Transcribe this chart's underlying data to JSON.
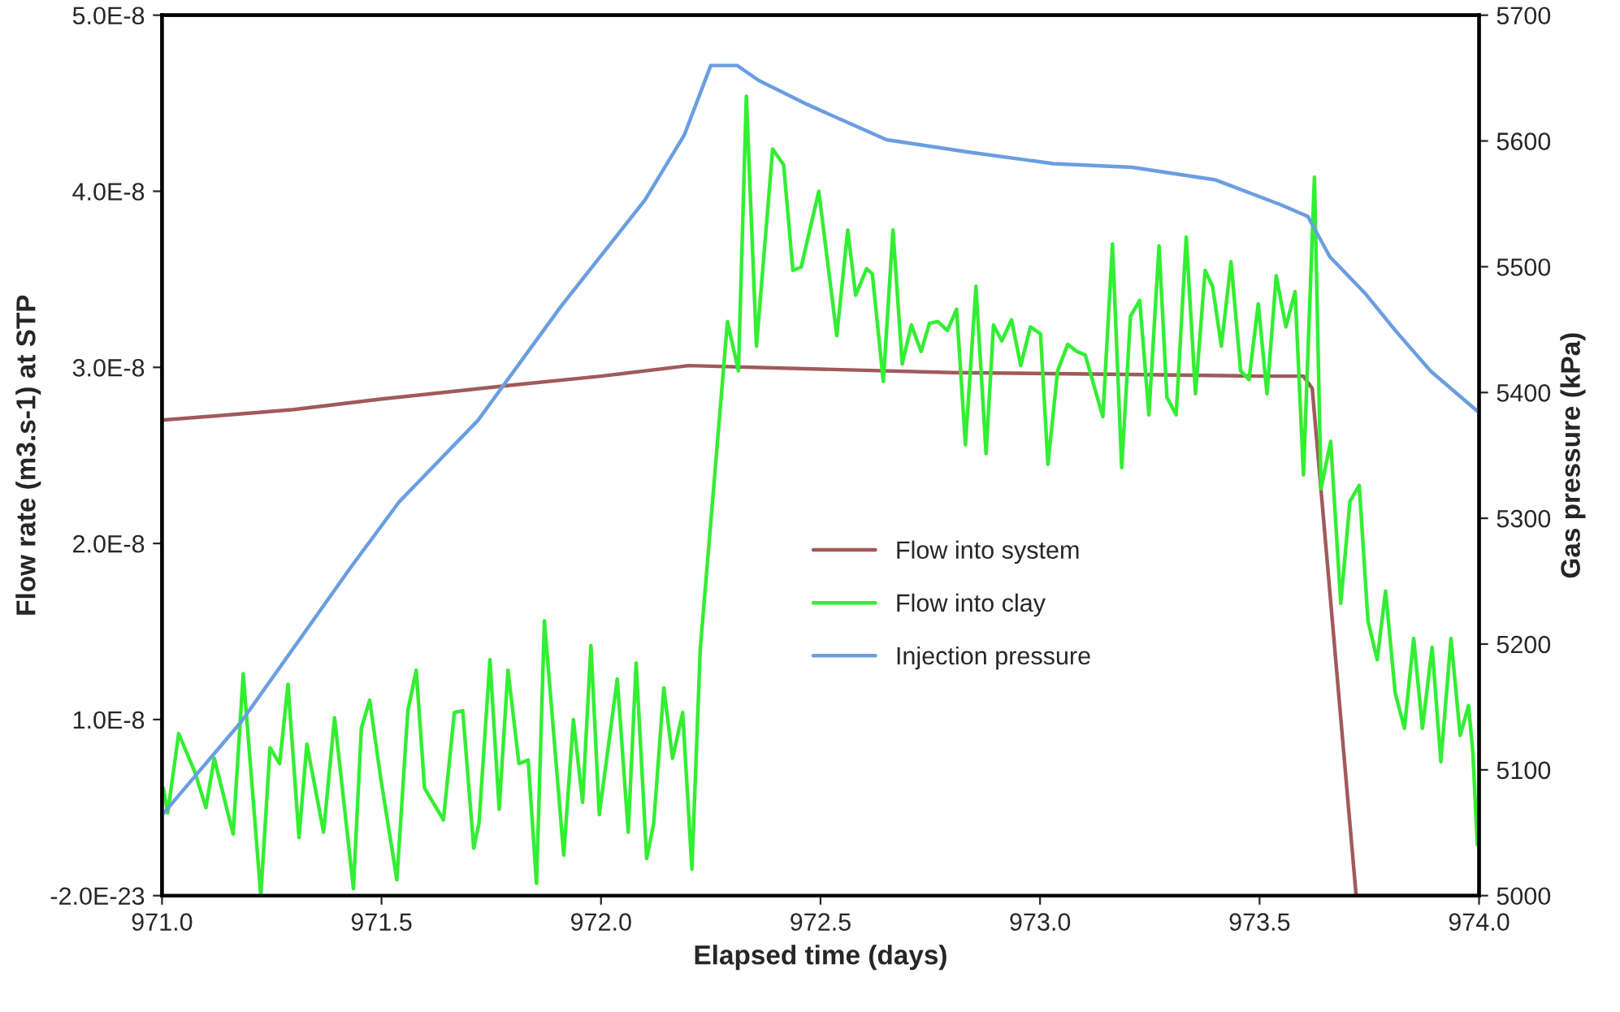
{
  "chart_data": {
    "type": "line",
    "xlabel": "Elapsed time (days)",
    "ylabel": "Flow rate (m3.s-1) at STP",
    "y2label": "Gas pressure (kPa)",
    "xlim": [
      971.0,
      974.0
    ],
    "xticks": [
      {
        "value": 971.0,
        "label": "971.0"
      },
      {
        "value": 971.5,
        "label": "971.5"
      },
      {
        "value": 972.0,
        "label": "972.0"
      },
      {
        "value": 972.5,
        "label": "972.5"
      },
      {
        "value": 973.0,
        "label": "973.0"
      },
      {
        "value": 973.5,
        "label": "973.5"
      },
      {
        "value": 974.0,
        "label": "974.0"
      }
    ],
    "ylim": [
      -2e-23,
      5e-08
    ],
    "yticks": [
      {
        "value": -2e-23,
        "label": "-2.0E-23"
      },
      {
        "value": 1e-08,
        "label": "1.0E-8"
      },
      {
        "value": 2e-08,
        "label": "2.0E-8"
      },
      {
        "value": 3e-08,
        "label": "3.0E-8"
      },
      {
        "value": 4e-08,
        "label": "4.0E-8"
      },
      {
        "value": 5e-08,
        "label": "5.0E-8"
      }
    ],
    "y2lim": [
      5000,
      5700
    ],
    "y2ticks": [
      5000,
      5100,
      5200,
      5300,
      5400,
      5500,
      5600,
      5700
    ],
    "grid": false,
    "legend": "center",
    "marker": "none",
    "line_style": "solid",
    "series": [
      {
        "name": "Flow into system",
        "color": "#a05a5a",
        "x": [
          971.0,
          971.3,
          971.5,
          971.8,
          972.0,
          972.2,
          972.5,
          972.8,
          973.2,
          973.5,
          973.6,
          973.62,
          973.72,
          974.0
        ],
        "values": [
          2.7e-08,
          2.76e-08,
          2.82e-08,
          2.9e-08,
          2.95e-08,
          3.01e-08,
          2.99e-08,
          2.97e-08,
          2.96e-08,
          2.95e-08,
          2.95e-08,
          2.88e-08,
          0,
          0
        ]
      },
      {
        "name": "Flow into clay",
        "color": "#33ee33",
        "x": [
          971.003,
          971.013,
          971.038,
          971.075,
          971.1,
          971.119,
          971.162,
          971.185,
          971.225,
          971.246,
          971.268,
          971.287,
          971.312,
          971.33,
          971.368,
          971.393,
          971.436,
          971.454,
          971.473,
          971.498,
          971.535,
          971.56,
          971.579,
          971.598,
          971.641,
          971.666,
          971.685,
          971.71,
          971.722,
          971.747,
          971.768,
          971.788,
          971.813,
          971.834,
          971.853,
          971.871,
          971.915,
          971.937,
          971.958,
          971.977,
          971.996,
          972.037,
          972.062,
          972.08,
          972.104,
          972.12,
          972.143,
          972.163,
          972.186,
          972.207,
          972.226,
          972.288,
          972.313,
          972.331,
          972.354,
          972.391,
          972.416,
          972.437,
          972.456,
          972.496,
          972.537,
          972.562,
          972.58,
          972.605,
          972.618,
          972.643,
          972.665,
          972.686,
          972.707,
          972.729,
          972.748,
          972.767,
          972.789,
          972.81,
          972.83,
          972.854,
          972.877,
          972.894,
          972.913,
          972.935,
          972.956,
          972.978,
          973.001,
          973.018,
          973.04,
          973.063,
          973.084,
          973.103,
          973.143,
          973.165,
          973.186,
          973.206,
          973.227,
          973.248,
          973.271,
          973.289,
          973.31,
          973.333,
          973.354,
          973.376,
          973.393,
          973.413,
          973.435,
          973.457,
          973.476,
          973.497,
          973.517,
          973.538,
          973.56,
          973.581,
          973.6,
          973.625,
          973.64,
          973.662,
          973.685,
          973.706,
          973.727,
          973.747,
          973.768,
          973.787,
          973.809,
          973.83,
          973.851,
          973.871,
          973.893,
          973.913,
          973.936,
          973.957,
          973.976,
          973.986,
          973.996
        ],
        "values": [
          6.1e-09,
          4.7e-09,
          9.2e-09,
          7e-09,
          5e-09,
          7.8e-09,
          3.5e-09,
          1.26e-08,
          0,
          8.4e-09,
          7.5e-09,
          1.2e-08,
          3.3e-09,
          8.6e-09,
          3.6e-09,
          1.01e-08,
          4e-10,
          9.5e-09,
          1.11e-08,
          6.7e-09,
          9e-10,
          1.05e-08,
          1.28e-08,
          6.1e-09,
          4.3e-09,
          1.04e-08,
          1.05e-08,
          2.7e-09,
          4.1e-09,
          1.34e-08,
          4.9e-09,
          1.28e-08,
          7.5e-09,
          7.7e-09,
          7e-10,
          1.56e-08,
          2.3e-09,
          1e-08,
          5.3e-09,
          1.42e-08,
          4.6e-09,
          1.23e-08,
          3.6e-09,
          1.32e-08,
          2.1e-09,
          4.1e-09,
          1.18e-08,
          7.8e-09,
          1.04e-08,
          1.5e-09,
          1.4e-08,
          3.26e-08,
          2.98e-08,
          4.54e-08,
          3.12e-08,
          4.24e-08,
          4.15e-08,
          3.55e-08,
          3.57e-08,
          4e-08,
          3.18e-08,
          3.78e-08,
          3.41e-08,
          3.56e-08,
          3.53e-08,
          2.92e-08,
          3.78e-08,
          3.02e-08,
          3.24e-08,
          3.09e-08,
          3.25e-08,
          3.26e-08,
          3.21e-08,
          3.33e-08,
          2.56e-08,
          3.46e-08,
          2.51e-08,
          3.24e-08,
          3.15e-08,
          3.27e-08,
          3.01e-08,
          3.23e-08,
          3.19e-08,
          2.45e-08,
          2.98e-08,
          3.13e-08,
          3.09e-08,
          3.07e-08,
          2.72e-08,
          3.7e-08,
          2.43e-08,
          3.29e-08,
          3.38e-08,
          2.73e-08,
          3.69e-08,
          2.83e-08,
          2.73e-08,
          3.74e-08,
          2.85e-08,
          3.55e-08,
          3.46e-08,
          3.12e-08,
          3.6e-08,
          2.98e-08,
          2.93e-08,
          3.36e-08,
          2.85e-08,
          3.52e-08,
          3.23e-08,
          3.43e-08,
          2.39e-08,
          4.08e-08,
          2.31e-08,
          2.58e-08,
          1.66e-08,
          2.24e-08,
          2.33e-08,
          1.56e-08,
          1.34e-08,
          1.73e-08,
          1.15e-08,
          9.5e-09,
          1.46e-08,
          9.5e-09,
          1.41e-08,
          7.6e-09,
          1.46e-08,
          9.1e-09,
          1.08e-08,
          8.1e-09,
          2.9e-09
        ]
      },
      {
        "name": "Injection pressure",
        "color": "#6a9ee0",
        "axis": "y2",
        "x": [
          971.0,
          971.18,
          971.43,
          971.54,
          971.72,
          971.91,
          972.1,
          972.19,
          972.25,
          972.31,
          972.36,
          972.47,
          972.65,
          972.84,
          973.03,
          973.21,
          973.4,
          973.55,
          973.61,
          973.66,
          973.74,
          973.81,
          973.89,
          974.0
        ],
        "values": [
          5064,
          5138,
          5261,
          5313,
          5378,
          5469,
          5553,
          5605,
          5660,
          5660,
          5648,
          5629,
          5601,
          5591,
          5582,
          5579,
          5569,
          5549,
          5540,
          5508,
          5479,
          5449,
          5417,
          5384
        ]
      }
    ]
  }
}
